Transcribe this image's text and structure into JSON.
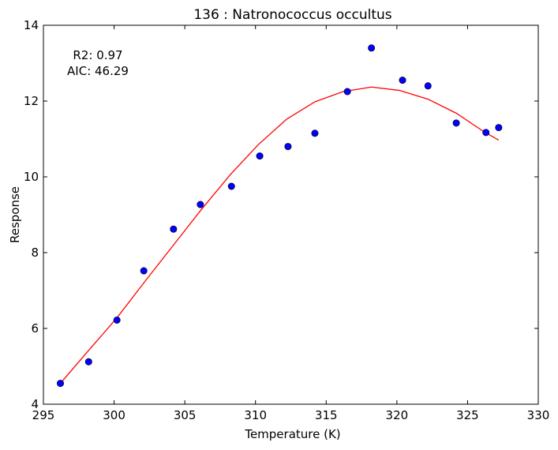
{
  "chart_data": {
    "type": "scatter",
    "title": "136 : Natronococcus occultus",
    "xlabel": "Temperature (K)",
    "ylabel": "Response",
    "xlim": [
      295,
      330
    ],
    "ylim": [
      4,
      14
    ],
    "xticks": [
      295,
      300,
      305,
      310,
      315,
      320,
      325,
      330
    ],
    "yticks": [
      4,
      6,
      8,
      10,
      12,
      14
    ],
    "annotation": {
      "r2": "R2: 0.97",
      "aic": "AIC: 46.29"
    },
    "grid": false,
    "series": [
      {
        "kind": "points",
        "color": "#0000ff",
        "x": [
          296.2,
          298.2,
          300.2,
          302.1,
          304.2,
          306.1,
          308.3,
          310.3,
          312.3,
          314.2,
          316.5,
          318.2,
          320.4,
          322.2,
          324.2,
          326.3,
          327.2
        ],
        "y": [
          4.55,
          5.12,
          6.22,
          7.52,
          8.62,
          9.27,
          9.75,
          10.55,
          10.8,
          11.15,
          12.25,
          13.4,
          12.55,
          12.4,
          11.42,
          11.17,
          11.3
        ]
      },
      {
        "kind": "line",
        "color": "#ff0000",
        "x": [
          296.2,
          298.2,
          300.2,
          302.2,
          304.2,
          306.2,
          308.2,
          310.2,
          312.2,
          314.2,
          316.2,
          318.2,
          320.2,
          322.2,
          324.2,
          326.2,
          327.2
        ],
        "y": [
          4.55,
          5.42,
          6.28,
          7.25,
          8.2,
          9.15,
          10.05,
          10.85,
          11.52,
          11.98,
          12.25,
          12.37,
          12.28,
          12.05,
          11.68,
          11.18,
          10.97
        ]
      }
    ]
  }
}
